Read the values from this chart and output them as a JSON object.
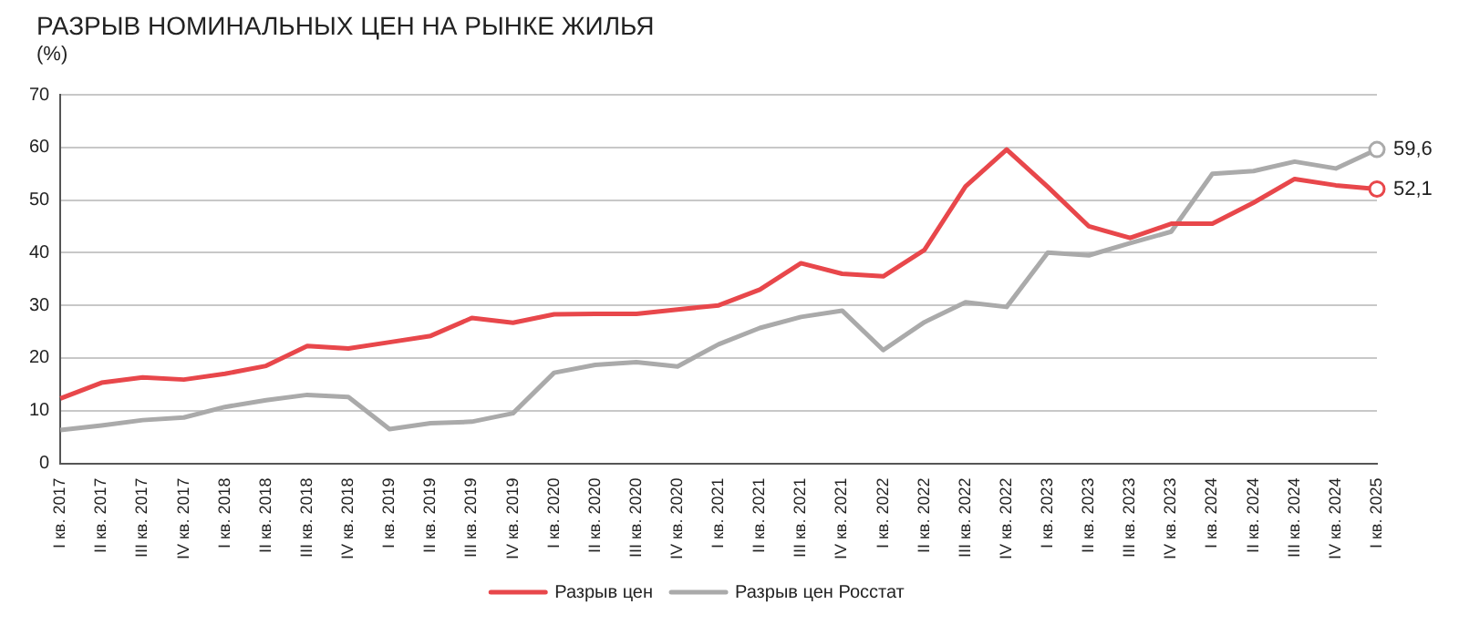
{
  "chart_data": {
    "type": "line",
    "title": "РАЗРЫВ НОМИНАЛЬНЫХ ЦЕН НА РЫНКЕ ЖИЛЬЯ",
    "ylabel": "(%)",
    "categories": [
      "I кв. 2017",
      "II кв. 2017",
      "III кв. 2017",
      "IV кв. 2017",
      "I кв. 2018",
      "II кв. 2018",
      "III кв. 2018",
      "IV кв. 2018",
      "I кв. 2019",
      "II кв. 2019",
      "III кв. 2019",
      "IV кв. 2019",
      "I кв. 2020",
      "II кв. 2020",
      "III кв. 2020",
      "IV кв. 2020",
      "I кв. 2021",
      "II кв. 2021",
      "III кв. 2021",
      "IV кв. 2021",
      "I кв. 2022",
      "II кв. 2022",
      "III кв. 2022",
      "IV кв. 2022",
      "I кв. 2023",
      "II кв. 2023",
      "III кв. 2023",
      "IV кв. 2023",
      "I кв. 2024",
      "II кв. 2024",
      "III кв. 2024",
      "IV кв. 2024",
      "I кв. 2025"
    ],
    "series": [
      {
        "name": "Разрыв цен",
        "color": "#e8474b",
        "values": [
          12.3,
          15.3,
          16.3,
          15.9,
          17,
          18.5,
          22.3,
          21.8,
          23,
          24.2,
          27.6,
          26.7,
          28.3,
          28.4,
          28.4,
          29.2,
          30,
          33,
          38,
          36,
          35.5,
          40.5,
          52.6,
          59.6,
          52.5,
          45,
          42.8,
          45.5,
          45.5,
          49.5,
          54,
          52.8,
          52.1
        ],
        "value_labels": [
          null,
          null,
          null,
          null,
          null,
          null,
          null,
          null,
          null,
          null,
          null,
          null,
          null,
          null,
          null,
          null,
          null,
          null,
          null,
          null,
          null,
          null,
          null,
          null,
          null,
          null,
          null,
          null,
          null,
          null,
          null,
          null,
          "52,1"
        ]
      },
      {
        "name": "Разрыв цен Росстат",
        "color": "#aaaaaa",
        "values": [
          6.3,
          7.2,
          8.2,
          8.7,
          10.7,
          12,
          13,
          12.6,
          6.5,
          7.6,
          7.9,
          9.5,
          17.2,
          18.7,
          19.2,
          18.4,
          22.6,
          25.7,
          27.8,
          29,
          21.5,
          26.8,
          30.6,
          29.7,
          40,
          39.5,
          41.8,
          44,
          55,
          55.5,
          57.3,
          56,
          59.6
        ],
        "value_labels": [
          null,
          null,
          null,
          null,
          null,
          null,
          null,
          null,
          null,
          null,
          null,
          null,
          null,
          null,
          null,
          null,
          null,
          null,
          null,
          null,
          null,
          null,
          null,
          null,
          null,
          null,
          null,
          null,
          null,
          null,
          null,
          null,
          "59,6"
        ]
      }
    ],
    "ylim": [
      0,
      70
    ],
    "yticks": [
      0,
      10,
      20,
      30,
      40,
      50,
      60,
      70
    ],
    "grid": "y",
    "legend": "bottom",
    "line_style": "solid"
  }
}
